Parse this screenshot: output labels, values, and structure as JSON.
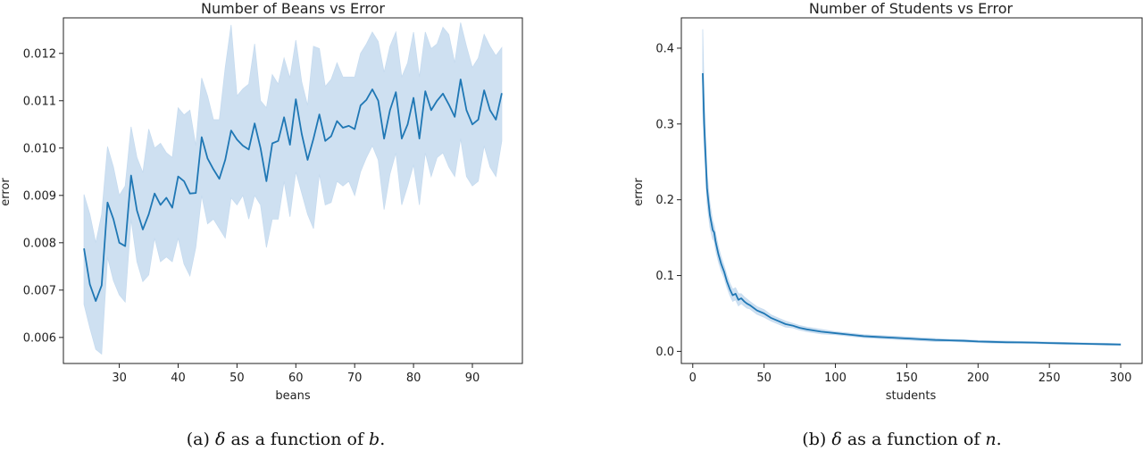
{
  "chart_data": [
    {
      "type": "line",
      "title": "Number of Beans vs Error",
      "xlabel": "beans",
      "ylabel": "error",
      "xlim": [
        20.5,
        98.5
      ],
      "ylim": [
        0.00545,
        0.01275
      ],
      "xticks": [
        30,
        40,
        50,
        60,
        70,
        80,
        90
      ],
      "yticks": [
        0.006,
        0.007,
        0.008,
        0.009,
        0.01,
        0.011,
        0.012
      ],
      "tick_labels_y": [
        "0.006",
        "0.007",
        "0.008",
        "0.009",
        "0.010",
        "0.011",
        "0.012"
      ],
      "tick_labels_x": [
        "30",
        "40",
        "50",
        "60",
        "70",
        "80",
        "90"
      ],
      "color": "#1f77b4",
      "band_color": "#c6dbef",
      "grid": false,
      "series": [
        {
          "x": [
            24,
            25,
            26,
            27,
            28,
            29,
            30,
            31,
            32,
            33,
            34,
            35,
            36,
            37,
            38,
            39,
            40,
            41,
            42,
            43,
            44,
            45,
            46,
            47,
            48,
            49,
            50,
            51,
            52,
            53,
            54,
            55,
            56,
            57,
            58,
            59,
            60,
            61,
            62,
            63,
            64,
            65,
            66,
            67,
            68,
            69,
            70,
            71,
            72,
            73,
            74,
            75,
            76,
            77,
            78,
            79,
            80,
            81,
            82,
            83,
            84,
            85,
            86,
            87,
            88,
            89,
            90,
            91,
            92,
            93,
            94,
            95
          ],
          "values": [
            0.00788,
            0.00712,
            0.00677,
            0.0071,
            0.00885,
            0.0085,
            0.008,
            0.00793,
            0.00942,
            0.00868,
            0.00828,
            0.0086,
            0.00904,
            0.0088,
            0.00895,
            0.00874,
            0.0094,
            0.0093,
            0.00904,
            0.00905,
            0.01023,
            0.00978,
            0.00955,
            0.00935,
            0.00975,
            0.01037,
            0.01018,
            0.01005,
            0.00997,
            0.01052,
            0.01,
            0.0093,
            0.0101,
            0.01015,
            0.01065,
            0.01007,
            0.01103,
            0.0103,
            0.00975,
            0.0102,
            0.01071,
            0.01015,
            0.01025,
            0.01057,
            0.01043,
            0.01047,
            0.0104,
            0.0109,
            0.01102,
            0.01124,
            0.011,
            0.0102,
            0.0108,
            0.01118,
            0.0102,
            0.0105,
            0.01106,
            0.0102,
            0.0112,
            0.0108,
            0.011,
            0.01115,
            0.01092,
            0.01066,
            0.01145,
            0.0108,
            0.0105,
            0.0106,
            0.01122,
            0.0108,
            0.0106,
            0.01116
          ],
          "upper": [
            0.00902,
            0.0086,
            0.008,
            0.0086,
            0.01003,
            0.0096,
            0.009,
            0.0092,
            0.01045,
            0.0098,
            0.00948,
            0.0104,
            0.01,
            0.0101,
            0.0099,
            0.0098,
            0.01085,
            0.0107,
            0.0108,
            0.01005,
            0.01148,
            0.0111,
            0.0106,
            0.0106,
            0.0117,
            0.0126,
            0.0111,
            0.01125,
            0.01135,
            0.0122,
            0.011,
            0.01085,
            0.01155,
            0.01135,
            0.0119,
            0.01148,
            0.01228,
            0.0114,
            0.0109,
            0.01215,
            0.0121,
            0.0113,
            0.01145,
            0.0118,
            0.0115,
            0.0115,
            0.0115,
            0.012,
            0.0122,
            0.01245,
            0.01225,
            0.0116,
            0.01215,
            0.01245,
            0.0115,
            0.0118,
            0.01245,
            0.0115,
            0.01245,
            0.0121,
            0.0122,
            0.01255,
            0.0124,
            0.0118,
            0.01265,
            0.01215,
            0.0117,
            0.0119,
            0.0124,
            0.01215,
            0.01195,
            0.01212
          ],
          "lower": [
            0.0067,
            0.0062,
            0.00575,
            0.00565,
            0.0077,
            0.0072,
            0.0069,
            0.00675,
            0.0085,
            0.0076,
            0.00718,
            0.00732,
            0.0081,
            0.0076,
            0.0077,
            0.0076,
            0.0081,
            0.00755,
            0.0073,
            0.0079,
            0.009,
            0.0084,
            0.0085,
            0.0083,
            0.0081,
            0.00895,
            0.0088,
            0.009,
            0.0085,
            0.009,
            0.0088,
            0.0079,
            0.0085,
            0.0085,
            0.0093,
            0.00855,
            0.0095,
            0.00905,
            0.0086,
            0.0083,
            0.00945,
            0.0088,
            0.00885,
            0.0093,
            0.0092,
            0.0093,
            0.009,
            0.0095,
            0.0098,
            0.01005,
            0.00975,
            0.0087,
            0.00945,
            0.0099,
            0.0088,
            0.0092,
            0.00965,
            0.0088,
            0.0099,
            0.0094,
            0.0098,
            0.0099,
            0.0096,
            0.0094,
            0.0102,
            0.0094,
            0.0092,
            0.0093,
            0.01005,
            0.0096,
            0.0094,
            0.01015
          ]
        }
      ]
    },
    {
      "type": "line",
      "title": "Number of Students vs Error",
      "xlabel": "students",
      "ylabel": "error",
      "xlim": [
        -8,
        315
      ],
      "ylim": [
        -0.016,
        0.44
      ],
      "xticks": [
        0,
        50,
        100,
        150,
        200,
        250,
        300
      ],
      "yticks": [
        0.0,
        0.1,
        0.2,
        0.3,
        0.4
      ],
      "tick_labels_y": [
        "0.0",
        "0.1",
        "0.2",
        "0.3",
        "0.4"
      ],
      "tick_labels_x": [
        "0",
        "50",
        "100",
        "150",
        "200",
        "250",
        "300"
      ],
      "color": "#1f77b4",
      "band_color": "#c6dbef",
      "grid": false,
      "series": [
        {
          "x": [
            7,
            8,
            9,
            10,
            12,
            14,
            15,
            16,
            18,
            20,
            22,
            24,
            26,
            28,
            30,
            32,
            34,
            36,
            38,
            40,
            45,
            50,
            55,
            60,
            65,
            70,
            75,
            80,
            90,
            100,
            110,
            120,
            130,
            140,
            150,
            160,
            170,
            180,
            190,
            200,
            210,
            220,
            230,
            240,
            250,
            260,
            270,
            280,
            290,
            300
          ],
          "values": [
            0.367,
            0.3,
            0.258,
            0.215,
            0.18,
            0.16,
            0.157,
            0.145,
            0.128,
            0.115,
            0.105,
            0.092,
            0.082,
            0.074,
            0.076,
            0.068,
            0.07,
            0.066,
            0.063,
            0.061,
            0.054,
            0.05,
            0.044,
            0.04,
            0.036,
            0.034,
            0.031,
            0.029,
            0.026,
            0.024,
            0.022,
            0.02,
            0.019,
            0.018,
            0.017,
            0.016,
            0.015,
            0.0145,
            0.014,
            0.013,
            0.0125,
            0.012,
            0.0118,
            0.0115,
            0.011,
            0.0106,
            0.0102,
            0.0098,
            0.0094,
            0.009
          ],
          "upper": [
            0.425,
            0.34,
            0.282,
            0.236,
            0.196,
            0.172,
            0.166,
            0.156,
            0.138,
            0.124,
            0.113,
            0.1,
            0.09,
            0.082,
            0.084,
            0.076,
            0.076,
            0.072,
            0.069,
            0.066,
            0.059,
            0.055,
            0.048,
            0.044,
            0.04,
            0.037,
            0.034,
            0.032,
            0.029,
            0.026,
            0.024,
            0.022,
            0.021,
            0.02,
            0.019,
            0.018,
            0.017,
            0.016,
            0.0155,
            0.0145,
            0.014,
            0.0135,
            0.013,
            0.0127,
            0.0122,
            0.0118,
            0.0114,
            0.011,
            0.0106,
            0.0102
          ],
          "lower": [
            0.32,
            0.266,
            0.236,
            0.196,
            0.164,
            0.148,
            0.146,
            0.134,
            0.118,
            0.106,
            0.097,
            0.084,
            0.074,
            0.066,
            0.068,
            0.06,
            0.063,
            0.06,
            0.057,
            0.056,
            0.049,
            0.045,
            0.04,
            0.036,
            0.032,
            0.031,
            0.028,
            0.026,
            0.023,
            0.022,
            0.02,
            0.018,
            0.017,
            0.016,
            0.015,
            0.014,
            0.013,
            0.013,
            0.0125,
            0.0115,
            0.011,
            0.0105,
            0.0106,
            0.0103,
            0.0098,
            0.0094,
            0.009,
            0.0086,
            0.0082,
            0.0078
          ]
        }
      ]
    }
  ],
  "captions": [
    {
      "prefix": "(a) ",
      "symbol": "δ",
      "middle": " as a function of ",
      "variable": "b",
      "suffix": "."
    },
    {
      "prefix": "(b) ",
      "symbol": "δ",
      "middle": " as a function of ",
      "variable": "n",
      "suffix": "."
    }
  ]
}
